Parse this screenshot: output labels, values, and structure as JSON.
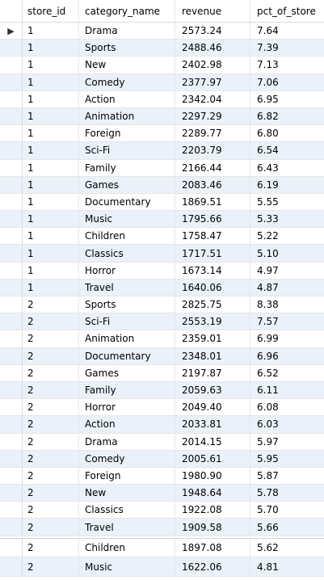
{
  "columns": [
    "store_id",
    "category_name",
    "revenue",
    "pct_of_store"
  ],
  "current_row_marker": "▶",
  "rows": [
    [
      "1",
      "Drama",
      "2573.24",
      "7.64"
    ],
    [
      "1",
      "Sports",
      "2488.46",
      "7.39"
    ],
    [
      "1",
      "New",
      "2402.98",
      "7.13"
    ],
    [
      "1",
      "Comedy",
      "2377.97",
      "7.06"
    ],
    [
      "1",
      "Action",
      "2342.04",
      "6.95"
    ],
    [
      "1",
      "Animation",
      "2297.29",
      "6.82"
    ],
    [
      "1",
      "Foreign",
      "2289.77",
      "6.80"
    ],
    [
      "1",
      "Sci-Fi",
      "2203.79",
      "6.54"
    ],
    [
      "1",
      "Family",
      "2166.44",
      "6.43"
    ],
    [
      "1",
      "Games",
      "2083.46",
      "6.19"
    ],
    [
      "1",
      "Documentary",
      "1869.51",
      "5.55"
    ],
    [
      "1",
      "Music",
      "1795.66",
      "5.33"
    ],
    [
      "1",
      "Children",
      "1758.47",
      "5.22"
    ],
    [
      "1",
      "Classics",
      "1717.51",
      "5.10"
    ],
    [
      "1",
      "Horror",
      "1673.14",
      "4.97"
    ],
    [
      "1",
      "Travel",
      "1640.06",
      "4.87"
    ],
    [
      "2",
      "Sports",
      "2825.75",
      "8.38"
    ],
    [
      "2",
      "Sci-Fi",
      "2553.19",
      "7.57"
    ],
    [
      "2",
      "Animation",
      "2359.01",
      "6.99"
    ],
    [
      "2",
      "Documentary",
      "2348.01",
      "6.96"
    ],
    [
      "2",
      "Games",
      "2197.87",
      "6.52"
    ],
    [
      "2",
      "Family",
      "2059.63",
      "6.11"
    ],
    [
      "2",
      "Horror",
      "2049.40",
      "6.08"
    ],
    [
      "2",
      "Action",
      "2033.81",
      "6.03"
    ],
    [
      "2",
      "Drama",
      "2014.15",
      "5.97"
    ],
    [
      "2",
      "Comedy",
      "2005.61",
      "5.95"
    ],
    [
      "2",
      "Foreign",
      "1980.90",
      "5.87"
    ],
    [
      "2",
      "New",
      "1948.64",
      "5.78"
    ],
    [
      "2",
      "Classics",
      "1922.08",
      "5.70"
    ],
    [
      "2",
      "Travel",
      "1909.58",
      "5.66"
    ]
  ],
  "tail_rows": [
    [
      "2",
      "Children",
      "1897.08",
      "5.62"
    ],
    [
      "2",
      "Music",
      "1622.06",
      "4.81"
    ]
  ]
}
